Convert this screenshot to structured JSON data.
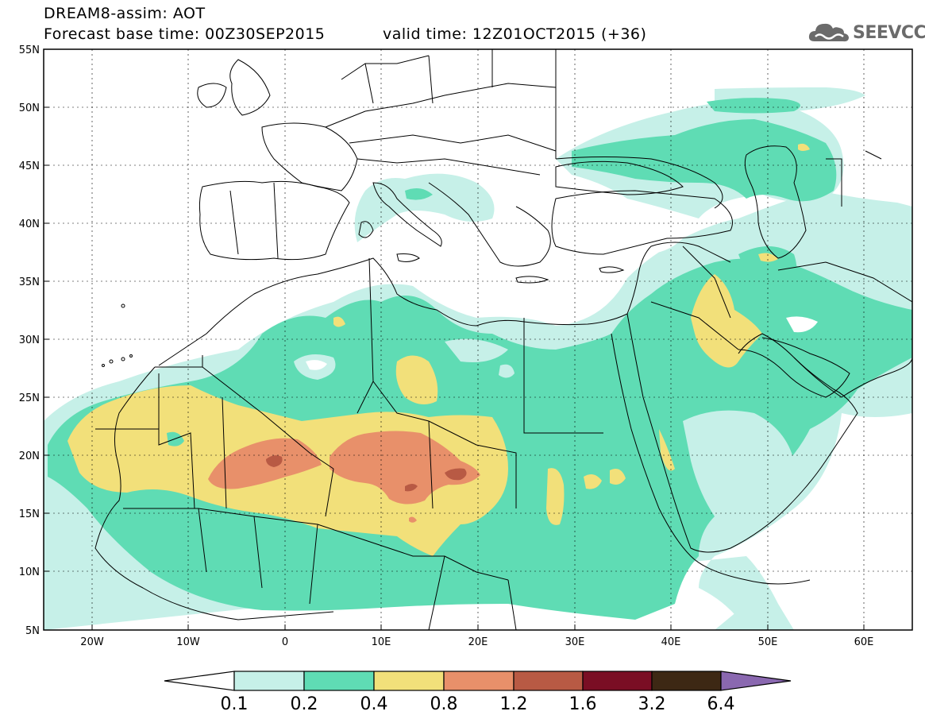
{
  "title": {
    "line1": "DREAM8-assim: AOT",
    "line2_left": "Forecast base time: 00Z30SEP2015",
    "line2_right": "valid time: 12Z01OCT2015 (+36)"
  },
  "logo": {
    "text": "SEEVCCC",
    "icon": "cloud-icon"
  },
  "map": {
    "lat_labels": [
      "55N",
      "50N",
      "45N",
      "40N",
      "35N",
      "30N",
      "25N",
      "20N",
      "15N",
      "10N",
      "5N"
    ],
    "lon_labels": [
      "20W",
      "10W",
      "0",
      "10E",
      "20E",
      "30E",
      "40E",
      "50E",
      "60E"
    ]
  },
  "colorbar": {
    "labels": [
      "0.1",
      "0.2",
      "0.4",
      "0.8",
      "1.2",
      "1.6",
      "3.2",
      "6.4"
    ],
    "colors": [
      "#c6f0e8",
      "#5fdcb4",
      "#f2e07a",
      "#e8906a",
      "#b85a44",
      "#7a0e24",
      "#3d2814",
      "#8a68b0"
    ]
  },
  "colors": {
    "light": "#c6f0e8",
    "mid": "#5fdcb4",
    "yellow": "#f2e07a",
    "orange": "#e8906a",
    "red": "#b85a44"
  }
}
